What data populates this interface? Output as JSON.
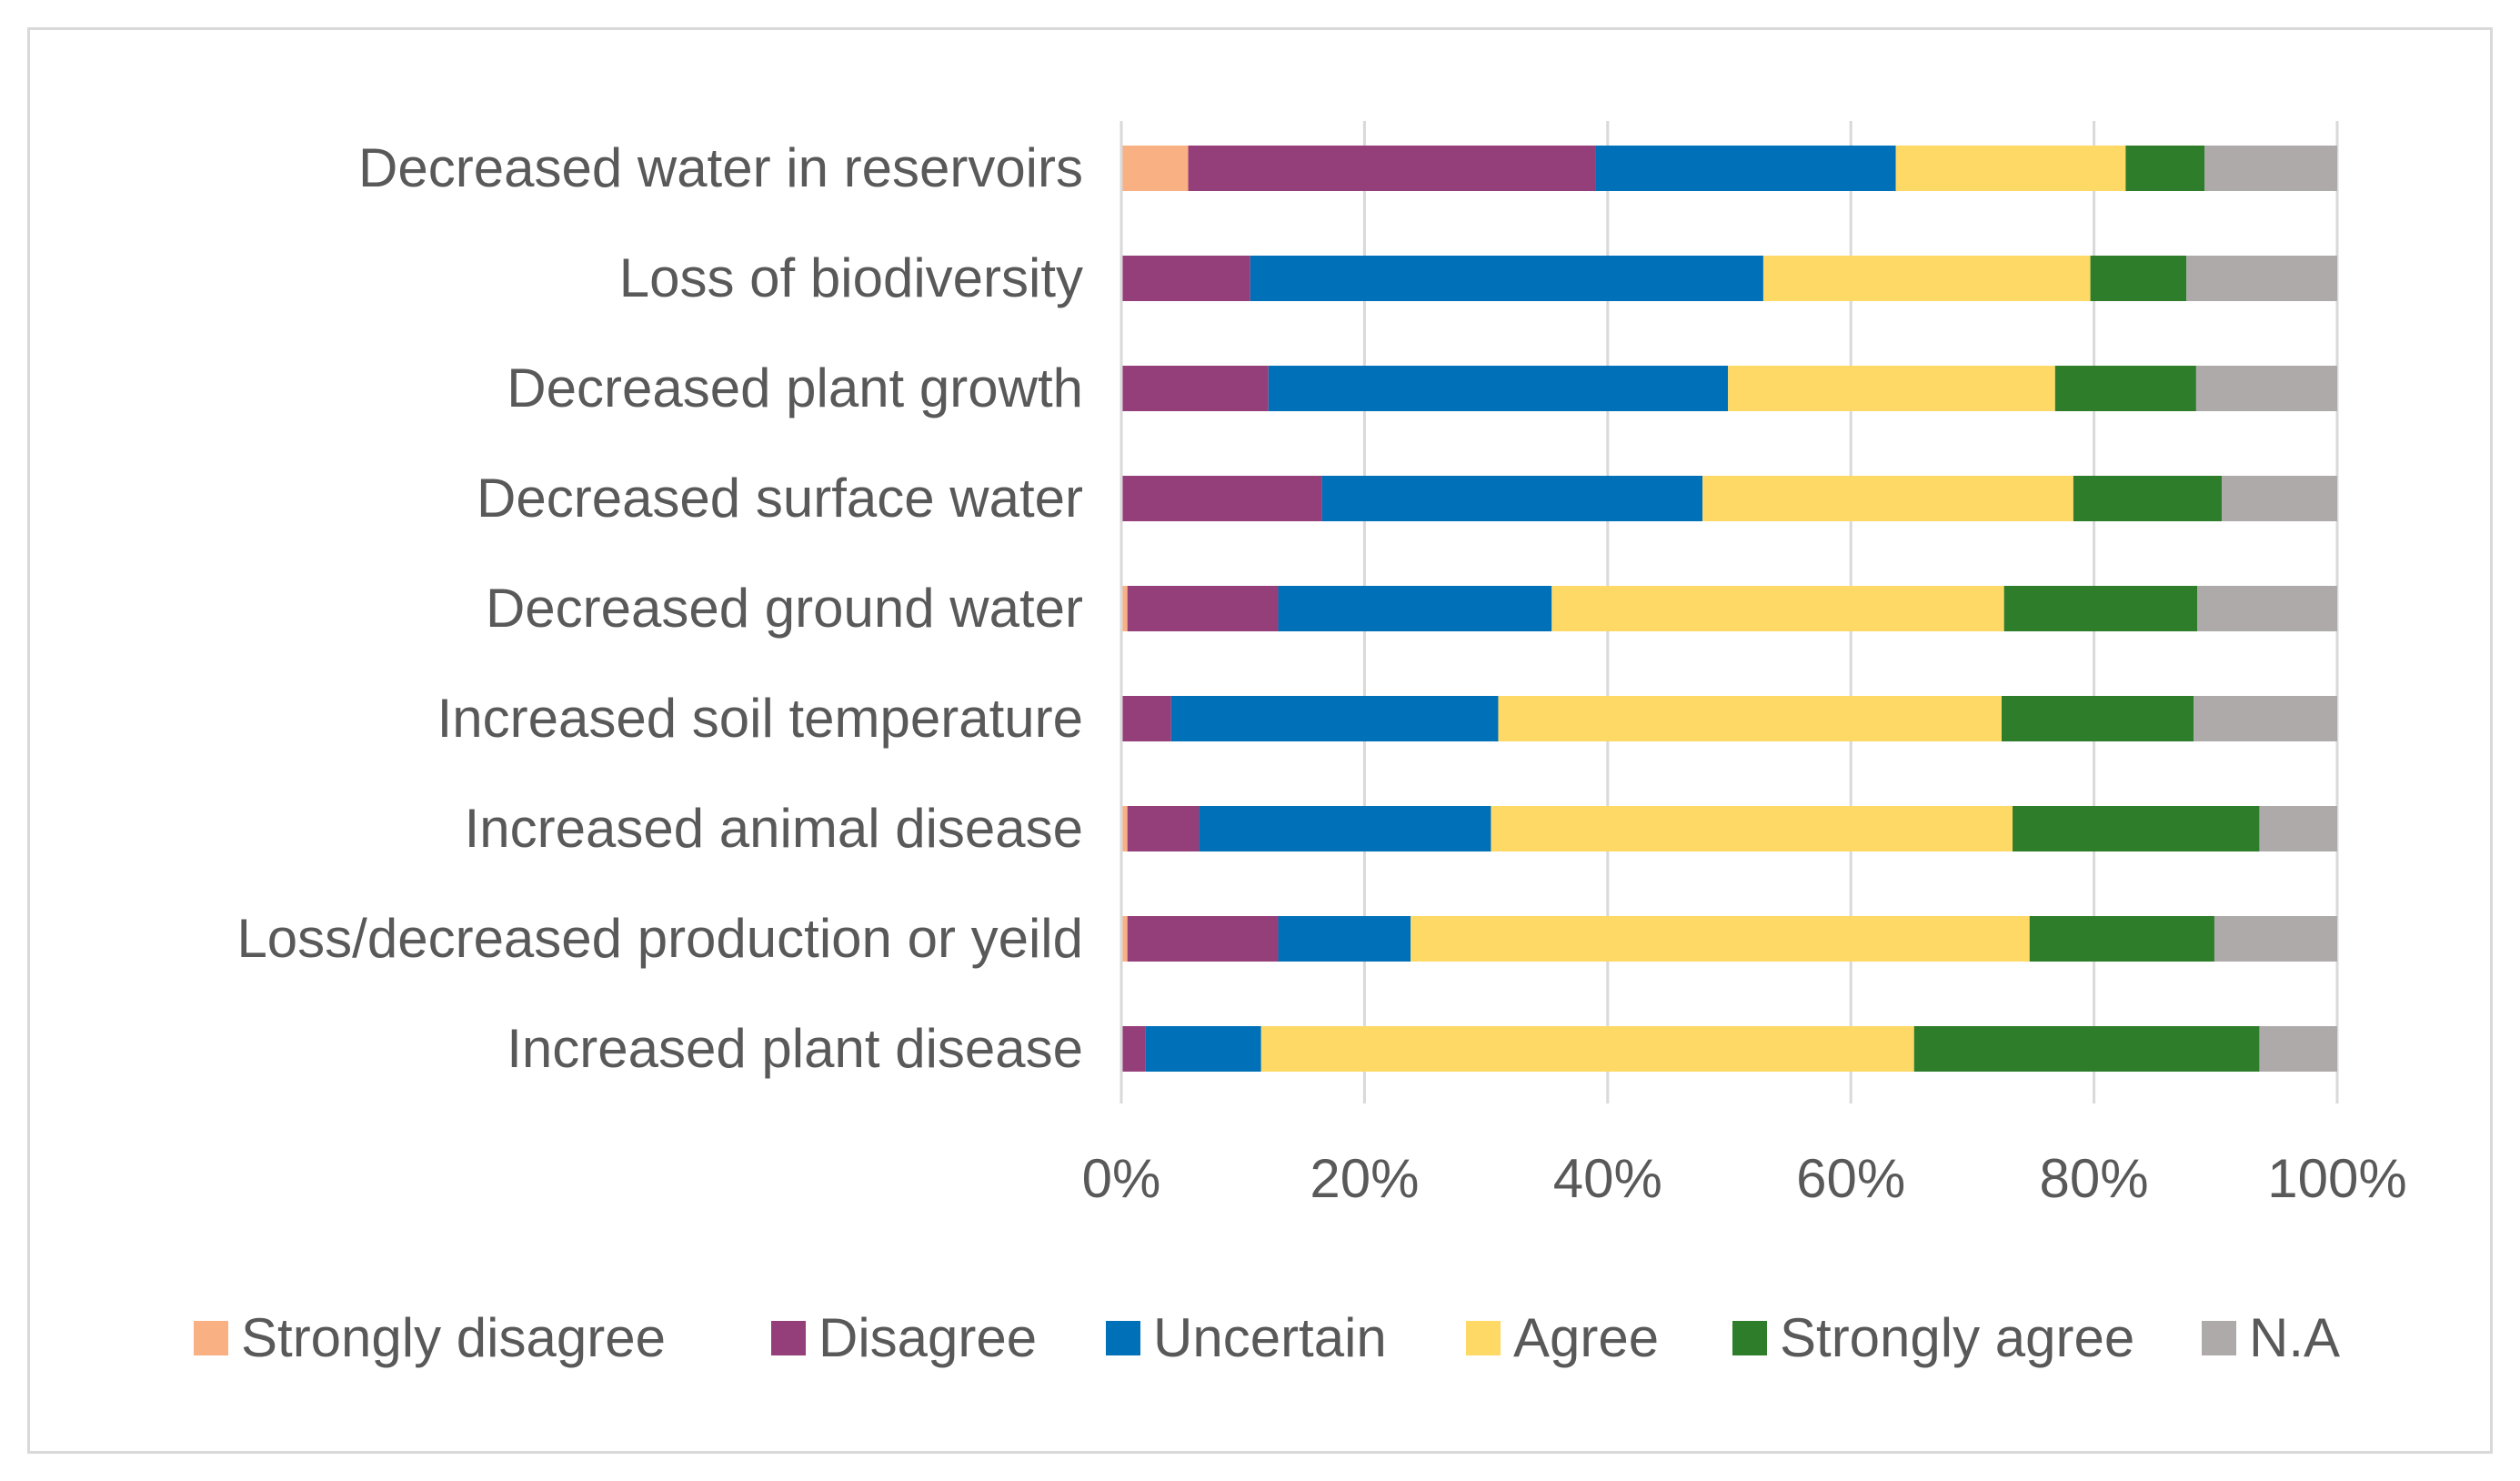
{
  "chart_data": {
    "type": "bar",
    "orientation": "horizontal",
    "stacked": "percent",
    "title": "",
    "xlabel": "",
    "ylabel": "",
    "xlim": [
      0,
      100
    ],
    "x_ticks": [
      "0%",
      "20%",
      "40%",
      "60%",
      "80%",
      "100%"
    ],
    "grid": true,
    "legend_position": "bottom",
    "categories": [
      "Decreased water in reservoirs",
      "Loss of biodiversity",
      "Decreased plant growth",
      "Decreased surface water",
      "Decreased ground water",
      "Increased soil temperature",
      "Increased animal disease",
      "Loss/decreased production or yeild",
      "Increased plant disease"
    ],
    "series": [
      {
        "name": "Strongly disagree",
        "color": "#f9b183",
        "values": [
          5.5,
          0,
          0,
          0,
          0.5,
          0,
          0.5,
          0.5,
          0
        ]
      },
      {
        "name": "Disagree",
        "color": "#943f7a",
        "values": [
          33.5,
          10.6,
          12.1,
          16.5,
          12.4,
          4.1,
          5.9,
          12.4,
          2
        ]
      },
      {
        "name": "Uncertain",
        "color": "#0070b8",
        "values": [
          24.7,
          42.2,
          37.8,
          31.3,
          22.5,
          26.9,
          24.0,
          10.9,
          9.5
        ]
      },
      {
        "name": "Agree",
        "color": "#ffd966",
        "values": [
          18.9,
          26.9,
          26.9,
          30.5,
          37.2,
          41.4,
          42.9,
          50.9,
          53.7
        ]
      },
      {
        "name": "Strongly agree",
        "color": "#2e7d2a",
        "values": [
          6.5,
          7.9,
          11.6,
          12.2,
          15.9,
          15.8,
          20.3,
          15.2,
          28.4
        ]
      },
      {
        "name": "N.A",
        "color": "#aeaaaa",
        "values": [
          10.9,
          12.4,
          11.6,
          9.5,
          11.5,
          11.8,
          6.4,
          10.1,
          6.4
        ]
      }
    ]
  }
}
